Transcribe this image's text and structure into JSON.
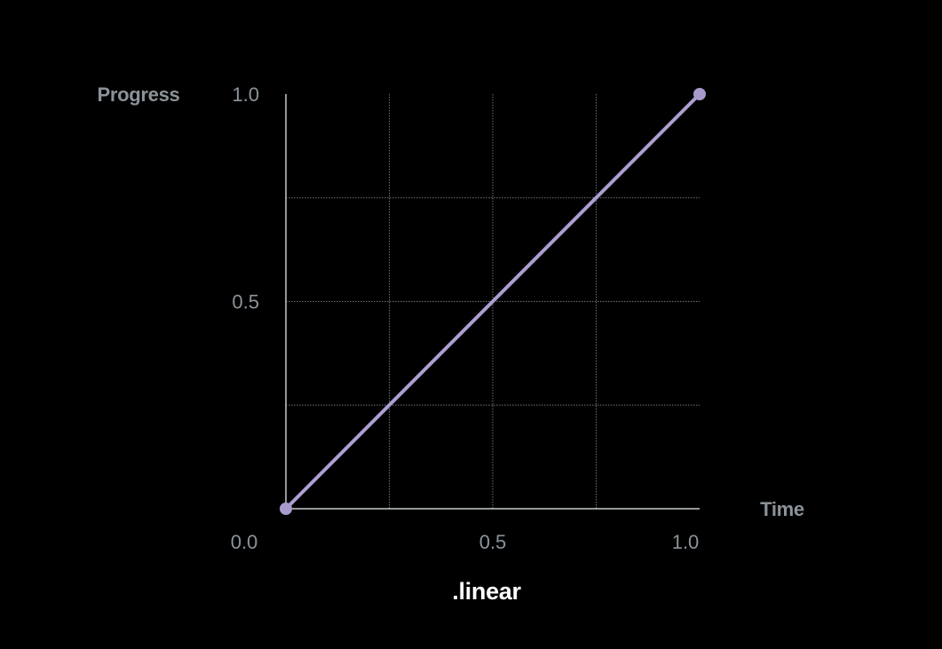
{
  "chart_data": {
    "type": "line",
    "title": ".linear",
    "xlabel": "Time",
    "ylabel": "Progress",
    "xlim": [
      0,
      1
    ],
    "ylim": [
      0,
      1
    ],
    "grid": true,
    "x_ticks": [
      {
        "value": 0.0,
        "label": "0.0"
      },
      {
        "value": 0.5,
        "label": "0.5"
      },
      {
        "value": 1.0,
        "label": "1.0"
      }
    ],
    "y_ticks": [
      {
        "value": 0.5,
        "label": "0.5"
      },
      {
        "value": 1.0,
        "label": "1.0"
      }
    ],
    "grid_lines": [
      0.25,
      0.5,
      0.75
    ],
    "series": [
      {
        "x": [
          0,
          1
        ],
        "y": [
          0,
          1
        ],
        "endpoint_markers": true
      }
    ]
  },
  "colors": {
    "background": "#000000",
    "line": "#ad9fd1",
    "marker": "#a89bcc",
    "axis": "#c4cacd",
    "grid": "#70767a",
    "axis_text": "#8b9399",
    "tick_text": "#8b9399",
    "title": "#ffffff"
  }
}
